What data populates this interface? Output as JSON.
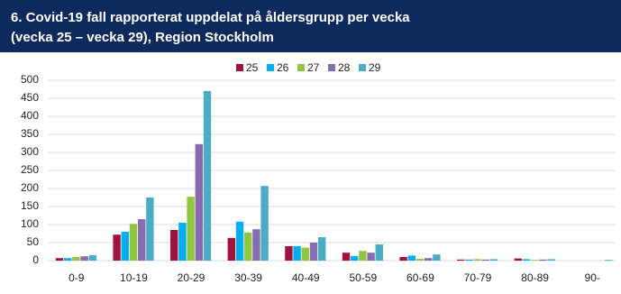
{
  "chart_data": {
    "type": "bar",
    "title": [
      "6. Covid-19 fall rapporterat uppdelat på åldersgrupp per vecka",
      "(vecka 25 – vecka 29), Region Stockholm"
    ],
    "categories": [
      "0-9",
      "10-19",
      "20-29",
      "30-39",
      "40-49",
      "50-59",
      "60-69",
      "70-79",
      "80-89",
      "90-"
    ],
    "series": [
      {
        "name": "25",
        "color": "#a3123f",
        "values": [
          7,
          72,
          85,
          63,
          40,
          22,
          10,
          3,
          6,
          0
        ]
      },
      {
        "name": "26",
        "color": "#00aeef",
        "values": [
          7,
          80,
          105,
          108,
          40,
          13,
          14,
          3,
          4,
          0
        ]
      },
      {
        "name": "27",
        "color": "#8dc63f",
        "values": [
          10,
          102,
          177,
          78,
          36,
          27,
          5,
          4,
          2,
          0
        ]
      },
      {
        "name": "28",
        "color": "#8a6bb0",
        "values": [
          12,
          115,
          323,
          87,
          50,
          22,
          7,
          3,
          3,
          0
        ]
      },
      {
        "name": "29",
        "color": "#4bacc6",
        "values": [
          15,
          175,
          470,
          207,
          65,
          45,
          17,
          4,
          4,
          2
        ]
      }
    ],
    "ylim": [
      0,
      500
    ],
    "yticks": [
      0,
      50,
      100,
      150,
      200,
      250,
      300,
      350,
      400,
      450,
      500
    ],
    "grid": true,
    "legend": "top"
  }
}
